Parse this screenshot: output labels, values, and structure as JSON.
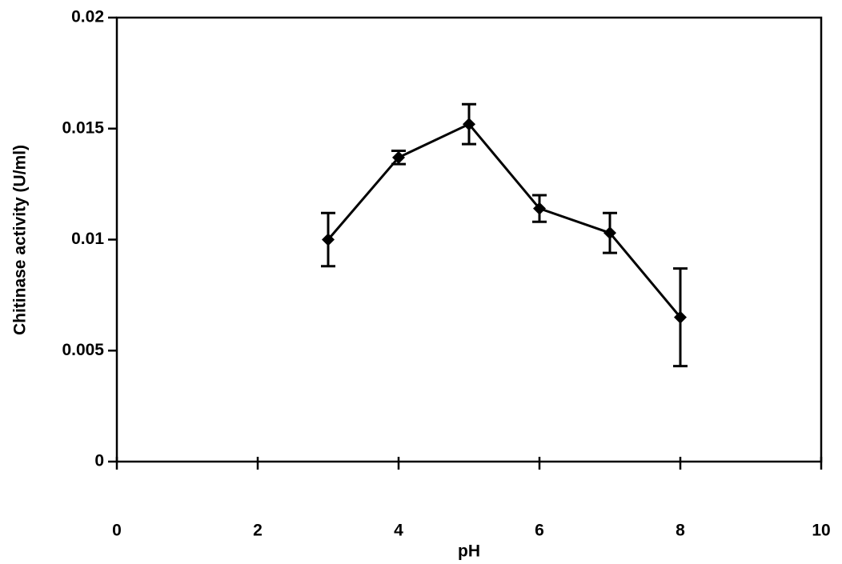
{
  "chart_data": {
    "type": "line",
    "x_label": "pH",
    "y_label": "Chitinase activity (U/ml)",
    "x": [
      3,
      4,
      5,
      6,
      7,
      8
    ],
    "values": [
      0.01,
      0.0137,
      0.0152,
      0.0114,
      0.0103,
      0.0065
    ],
    "errors": [
      0.0012,
      0.0003,
      0.0009,
      0.0006,
      0.0009,
      0.0022
    ],
    "color": "#000000",
    "xlim": [
      0,
      10
    ],
    "xticks": [
      0,
      2,
      4,
      6,
      8,
      10
    ],
    "ylim": [
      0,
      0.02
    ],
    "yticks": [
      0,
      0.005,
      0.01,
      0.015,
      0.02
    ],
    "grid": false
  }
}
